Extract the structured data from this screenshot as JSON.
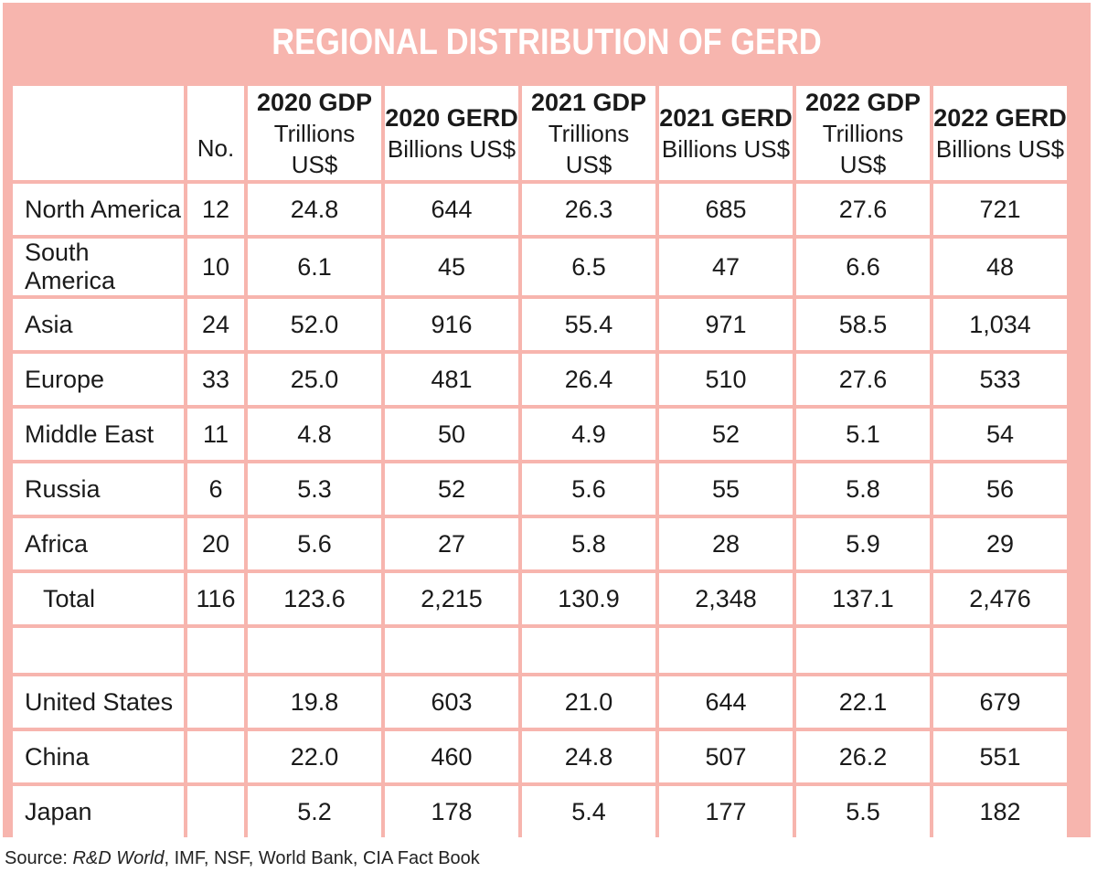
{
  "chart_data": {
    "type": "table",
    "title": "REGIONAL DISTRIBUTION OF GERD",
    "columns": [
      {
        "top": "",
        "bottom": ""
      },
      {
        "top": "",
        "bottom": "No."
      },
      {
        "top": "2020 GDP",
        "bottom": "Trillions US$"
      },
      {
        "top": "2020 GERD",
        "bottom": "Billions US$"
      },
      {
        "top": "2021 GDP",
        "bottom": "Trillions US$"
      },
      {
        "top": "2021 GERD",
        "bottom": "Billions US$"
      },
      {
        "top": "2022 GDP",
        "bottom": "Trillions US$"
      },
      {
        "top": "2022 GERD",
        "bottom": "Billions US$"
      }
    ],
    "regions": [
      [
        "North America",
        "12",
        "24.8",
        "644",
        "26.3",
        "685",
        "27.6",
        "721"
      ],
      [
        "South America",
        "10",
        "6.1",
        "45",
        "6.5",
        "47",
        "6.6",
        "48"
      ],
      [
        "Asia",
        "24",
        "52.0",
        "916",
        "55.4",
        "971",
        "58.5",
        "1,034"
      ],
      [
        "Europe",
        "33",
        "25.0",
        "481",
        "26.4",
        "510",
        "27.6",
        "533"
      ],
      [
        "Middle East",
        "11",
        "4.8",
        "50",
        "4.9",
        "52",
        "5.1",
        "54"
      ],
      [
        "Russia",
        "6",
        "5.3",
        "52",
        "5.6",
        "55",
        "5.8",
        "56"
      ],
      [
        "Africa",
        "20",
        "5.6",
        "27",
        "5.8",
        "28",
        "5.9",
        "29"
      ],
      [
        "Total",
        "116",
        "123.6",
        "2,215",
        "130.9",
        "2,348",
        "137.1",
        "2,476"
      ]
    ],
    "countries": [
      [
        "United States",
        "",
        "19.8",
        "603",
        "21.0",
        "644",
        "22.1",
        "679"
      ],
      [
        "China",
        "",
        "22.0",
        "460",
        "24.8",
        "507",
        "26.2",
        "551"
      ],
      [
        "Japan",
        "",
        "5.2",
        "178",
        "5.4",
        "177",
        "5.5",
        "182"
      ]
    ]
  },
  "source": {
    "prefix": "Source: ",
    "italic": "R&D World",
    "rest": ", IMF, NSF, World Bank, CIA Fact Book"
  },
  "colors": {
    "frame": "#f7b5ae",
    "title_text": "#ffffff",
    "cell_bg": "#ffffff"
  }
}
